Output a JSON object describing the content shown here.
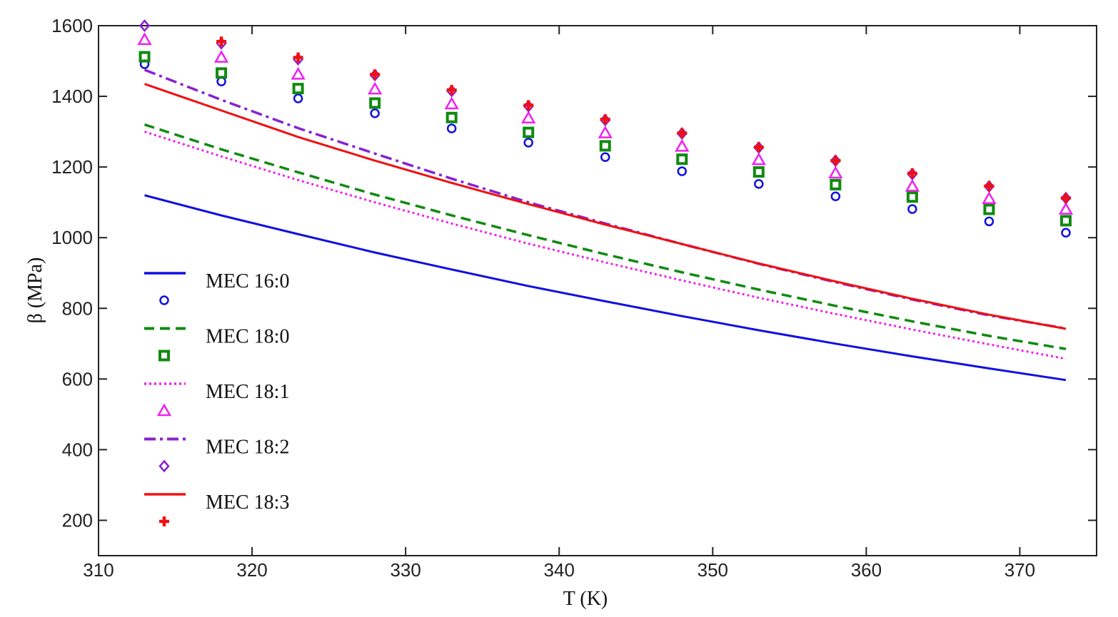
{
  "chart_data": {
    "type": "line",
    "xlabel": "T (K)",
    "ylabel": "β (MPa)",
    "x": [
      313,
      318,
      323,
      328,
      333,
      338,
      343,
      348,
      353,
      358,
      363,
      368,
      373
    ],
    "xlim": [
      310,
      375
    ],
    "xticks": [
      310,
      320,
      330,
      340,
      350,
      360,
      370
    ],
    "ylim": [
      100,
      1600
    ],
    "yticks": [
      200,
      400,
      600,
      800,
      1000,
      1200,
      1400,
      1600
    ],
    "grid": false,
    "legend": "lower left",
    "series": [
      {
        "name": "MEC 16:0",
        "color": "#1010e0",
        "dash": "solid",
        "marker": "circle",
        "values": [
          1120,
          1063,
          1010,
          958,
          910,
          863,
          820,
          778,
          738,
          700,
          664,
          630,
          597
        ],
        "points": [
          1491,
          1442,
          1394,
          1352,
          1309,
          1269,
          1228,
          1188,
          1152,
          1117,
          1081,
          1046,
          1014
        ]
      },
      {
        "name": "MEC 18:0",
        "color": "#108a10",
        "dash": "dashed",
        "marker": "square",
        "values": [
          1320,
          1250,
          1185,
          1122,
          1063,
          1007,
          953,
          902,
          853,
          807,
          763,
          722,
          685
        ],
        "points": [
          1512,
          1466,
          1422,
          1381,
          1340,
          1298,
          1260,
          1222,
          1186,
          1150,
          1115,
          1080,
          1048
        ]
      },
      {
        "name": "MEC 18:1",
        "color": "#f020f0",
        "dash": "dotted",
        "marker": "triangle",
        "values": [
          1300,
          1230,
          1163,
          1100,
          1040,
          983,
          930,
          879,
          830,
          784,
          740,
          698,
          657
        ],
        "points": [
          1560,
          1510,
          1462,
          1420,
          1378,
          1338,
          1296,
          1258,
          1220,
          1182,
          1145,
          1110,
          1080
        ]
      },
      {
        "name": "MEC 18:2",
        "color": "#8a20d0",
        "dash": "dashdot",
        "marker": "diamond",
        "values": [
          1475,
          1390,
          1310,
          1238,
          1167,
          1100,
          1040,
          982,
          926,
          874,
          825,
          780,
          743
        ],
        "points": [
          1600,
          1550,
          1505,
          1460,
          1415,
          1372,
          1333,
          1295,
          1255,
          1218,
          1180,
          1145,
          1112
        ]
      },
      {
        "name": "MEC 18:3",
        "color": "#f01010",
        "dash": "solid",
        "marker": "plus",
        "values": [
          1435,
          1360,
          1285,
          1218,
          1155,
          1095,
          1037,
          982,
          927,
          876,
          827,
          782,
          742
        ],
        "points": [
          null,
          1555,
          1510,
          1462,
          1418,
          1375,
          1335,
          1296,
          1256,
          1218,
          1182,
          1146,
          1112
        ]
      }
    ]
  }
}
